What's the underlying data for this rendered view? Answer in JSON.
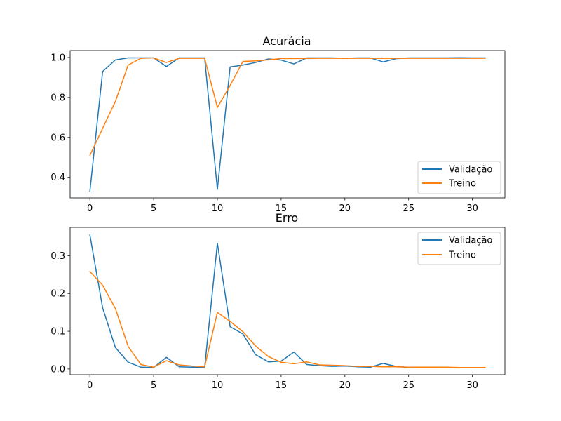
{
  "chart_data": [
    {
      "type": "line",
      "title": "Acurácia",
      "xlabel": "",
      "ylabel": "",
      "xlim": [
        -1.55,
        32.55
      ],
      "ylim": [
        0.297,
        1.035
      ],
      "xticks": [
        0,
        5,
        10,
        15,
        20,
        25,
        30
      ],
      "yticks": [
        0.4,
        0.6,
        0.8,
        1.0
      ],
      "ytick_format": 1,
      "grid": false,
      "legend": "lower-right",
      "x": [
        0,
        1,
        2,
        3,
        4,
        5,
        6,
        7,
        8,
        9,
        10,
        11,
        12,
        13,
        14,
        15,
        16,
        17,
        18,
        19,
        20,
        21,
        22,
        23,
        24,
        25,
        26,
        27,
        28,
        29,
        30,
        31
      ],
      "series": [
        {
          "name": "Validação",
          "color": "#1f77b4",
          "values": [
            0.33,
            0.93,
            0.988,
            0.998,
            0.998,
            0.998,
            0.955,
            0.998,
            0.998,
            0.998,
            0.34,
            0.953,
            0.962,
            0.975,
            0.993,
            0.987,
            0.968,
            0.998,
            0.998,
            0.998,
            0.996,
            0.998,
            0.998,
            0.978,
            0.994,
            0.998,
            0.998,
            0.998,
            0.998,
            0.999,
            0.998,
            0.998
          ]
        },
        {
          "name": "Treino",
          "color": "#ff7f0e",
          "values": [
            0.51,
            0.645,
            0.78,
            0.962,
            0.996,
            0.998,
            0.975,
            0.996,
            0.996,
            0.996,
            0.75,
            0.86,
            0.98,
            0.983,
            0.988,
            0.995,
            0.995,
            0.995,
            0.996,
            0.996,
            0.996,
            0.996,
            0.996,
            0.996,
            0.996,
            0.996,
            0.996,
            0.996,
            0.996,
            0.996,
            0.996,
            0.996
          ]
        }
      ]
    },
    {
      "type": "line",
      "title": "Erro",
      "xlabel": "",
      "ylabel": "",
      "xlim": [
        -1.55,
        32.55
      ],
      "ylim": [
        -0.015,
        0.375
      ],
      "xticks": [
        0,
        5,
        10,
        15,
        20,
        25,
        30
      ],
      "yticks": [
        0.0,
        0.1,
        0.2,
        0.3
      ],
      "ytick_format": 1,
      "grid": false,
      "legend": "upper-right",
      "x": [
        0,
        1,
        2,
        3,
        4,
        5,
        6,
        7,
        8,
        9,
        10,
        11,
        12,
        13,
        14,
        15,
        16,
        17,
        18,
        19,
        20,
        21,
        22,
        23,
        24,
        25,
        26,
        27,
        28,
        29,
        30,
        31
      ],
      "series": [
        {
          "name": "Validação",
          "color": "#1f77b4",
          "values": [
            0.355,
            0.162,
            0.057,
            0.018,
            0.005,
            0.004,
            0.031,
            0.006,
            0.005,
            0.004,
            0.333,
            0.112,
            0.093,
            0.038,
            0.019,
            0.021,
            0.045,
            0.012,
            0.009,
            0.007,
            0.008,
            0.006,
            0.005,
            0.015,
            0.007,
            0.004,
            0.004,
            0.004,
            0.004,
            0.003,
            0.003,
            0.003
          ]
        },
        {
          "name": "Treino",
          "color": "#ff7f0e",
          "values": [
            0.258,
            0.222,
            0.16,
            0.06,
            0.012,
            0.005,
            0.022,
            0.011,
            0.008,
            0.006,
            0.15,
            0.126,
            0.099,
            0.061,
            0.033,
            0.018,
            0.014,
            0.019,
            0.011,
            0.01,
            0.009,
            0.007,
            0.007,
            0.006,
            0.006,
            0.005,
            0.005,
            0.005,
            0.005,
            0.004,
            0.004,
            0.004
          ]
        }
      ]
    }
  ]
}
